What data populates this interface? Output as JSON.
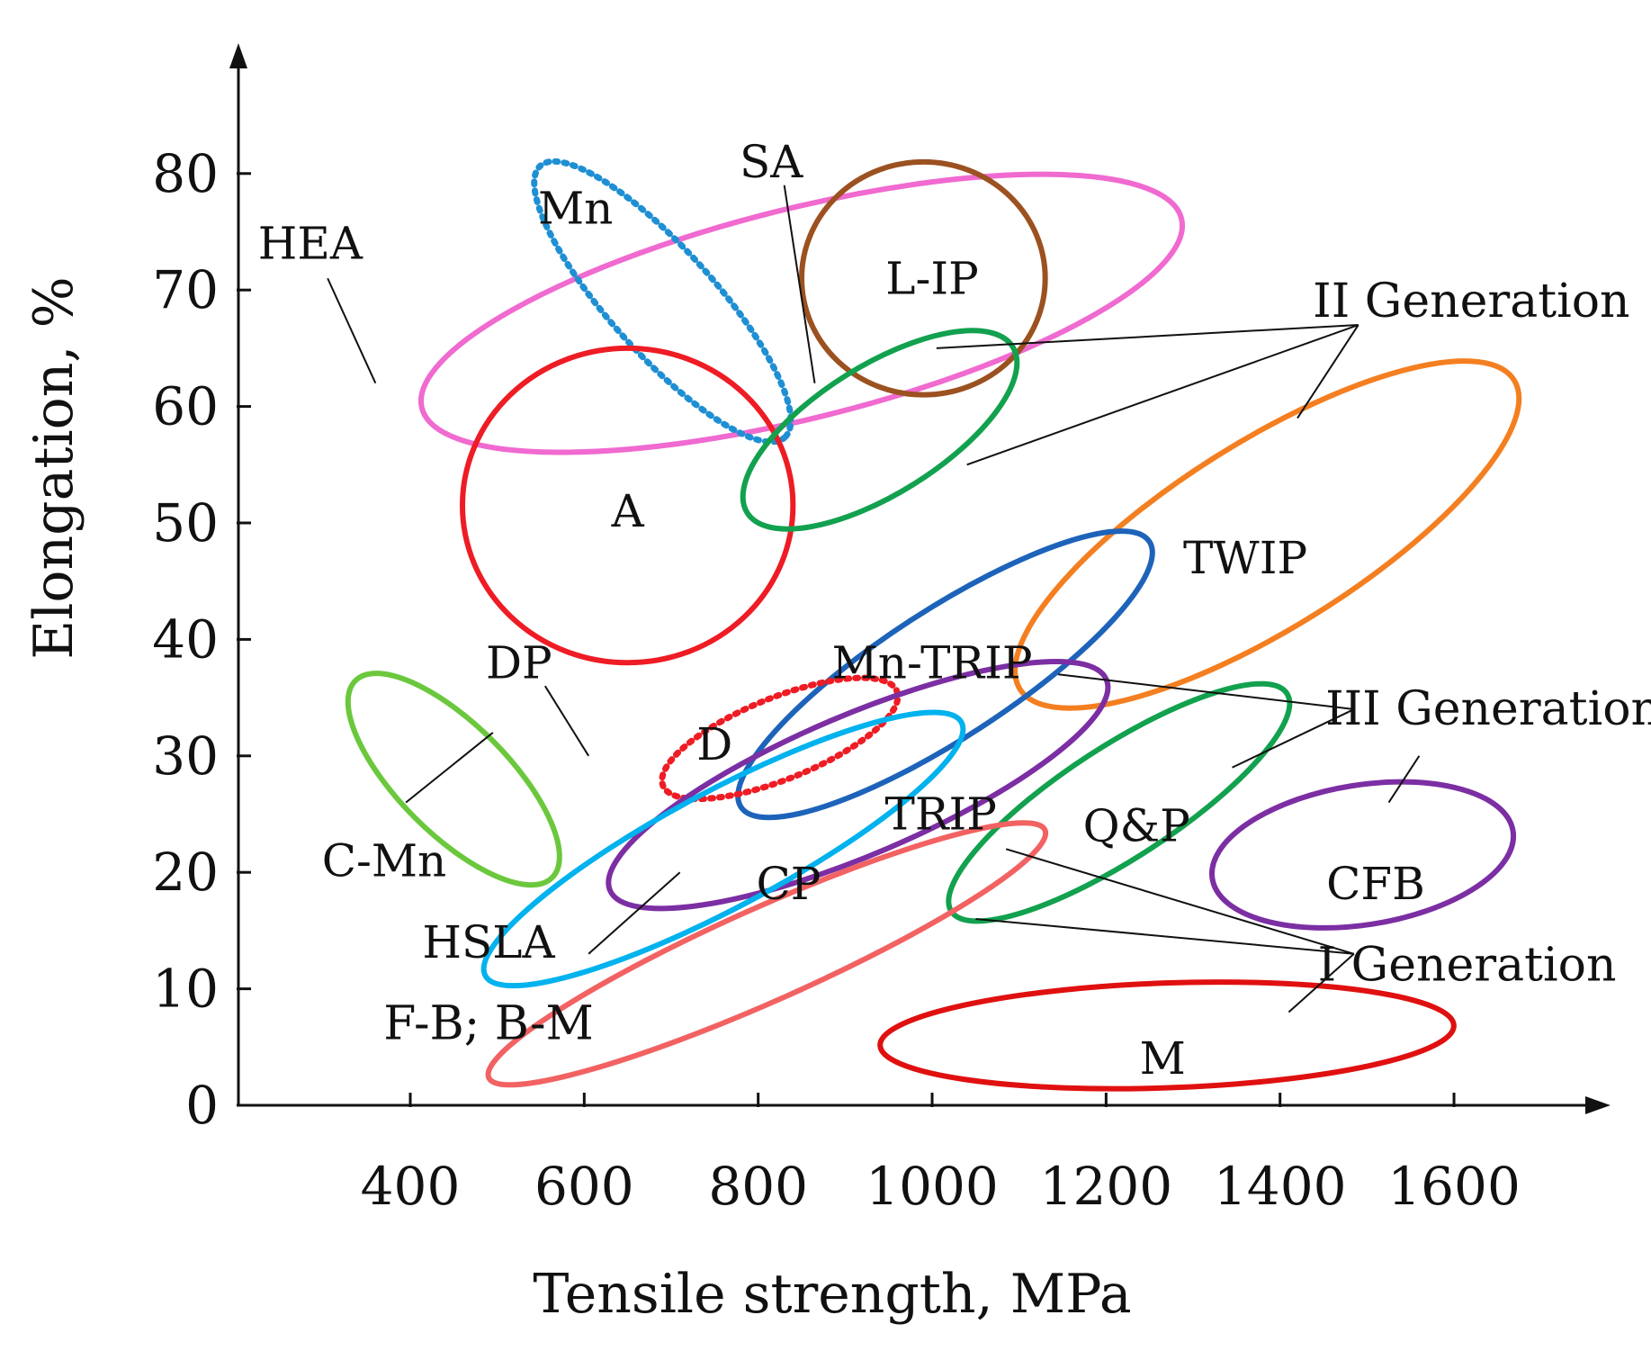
{
  "chart_data": {
    "type": "scatter",
    "title": "",
    "xlabel": "Tensile strength, MPa",
    "ylabel": "Elongation, %",
    "xlim": [
      200,
      1800
    ],
    "ylim": [
      0,
      85
    ],
    "x_ticks": [
      400,
      600,
      800,
      1000,
      1200,
      1400,
      1600
    ],
    "y_ticks": [
      0,
      10,
      20,
      30,
      40,
      50,
      60,
      70,
      80
    ],
    "regions": [
      {
        "name": "HEA",
        "cx": 850,
        "cy": 68,
        "rx": 450,
        "ry": 9,
        "angle": -14,
        "color": "#f06ad0",
        "dashed": false,
        "label_x": 285,
        "label_y": 74
      },
      {
        "name": "Mn",
        "cx": 690,
        "cy": 69,
        "rx": 210,
        "ry": 4.5,
        "angle": 48,
        "color": "#1f8fd3",
        "dashed": true,
        "label_x": 590,
        "label_y": 77
      },
      {
        "name": "A",
        "cx": 650,
        "cy": 51.5,
        "rx": 190,
        "ry": 13.5,
        "angle": 0,
        "color": "#ee1c24",
        "dashed": false,
        "label_x": 650,
        "label_y": 51
      },
      {
        "name": "L-IP",
        "cx": 990,
        "cy": 71,
        "rx": 140,
        "ry": 10,
        "angle": 0,
        "color": "#9b5120",
        "dashed": false,
        "label_x": 1000,
        "label_y": 71
      },
      {
        "name": "SA",
        "cx": 940,
        "cy": 58,
        "rx": 180,
        "ry": 5.5,
        "angle": -32,
        "color": "#12a14e",
        "dashed": false,
        "label_x": 815,
        "label_y": 81
      },
      {
        "name": "TWIP",
        "cx": 1385,
        "cy": 49,
        "rx": 335,
        "ry": 8,
        "angle": -32,
        "color": "#f47f21",
        "dashed": false,
        "label_x": 1360,
        "label_y": 47
      },
      {
        "name": "Mn-TRIP",
        "cx": 1015,
        "cy": 37,
        "rx": 280,
        "ry": 5.5,
        "angle": -33,
        "color": "#1d63ba",
        "dashed": false,
        "label_x": 1000,
        "label_y": 38
      },
      {
        "name": "D",
        "cx": 825,
        "cy": 31.5,
        "rx": 145,
        "ry": 3.5,
        "angle": -22,
        "color": "#ee1c24",
        "dashed": true,
        "label_x": 750,
        "label_y": 31
      },
      {
        "name": "TRIP",
        "cx": 915,
        "cy": 27.5,
        "rx": 310,
        "ry": 6,
        "angle": -23,
        "color": "#7c2ea3",
        "dashed": false,
        "label_x": 1010,
        "label_y": 25
      },
      {
        "name": "C-Mn",
        "cx": 450,
        "cy": 28,
        "rx": 160,
        "ry": 4.7,
        "angle": 45,
        "color": "#6bc83d",
        "dashed": false,
        "label_x": 370,
        "label_y": 21
      },
      {
        "name": "DP",
        "cx": 565,
        "cy": 38,
        "rx": 0,
        "ry": 0,
        "angle": 0,
        "color": "#111111",
        "dashed": false,
        "label_x": 525,
        "label_y": 38
      },
      {
        "name": "CP",
        "cx": 760,
        "cy": 22,
        "rx": 310,
        "ry": 5,
        "angle": -28,
        "color": "#00b2ee",
        "dashed": false,
        "label_x": 835,
        "label_y": 19
      },
      {
        "name": "Q&P",
        "cx": 1215,
        "cy": 26,
        "rx": 230,
        "ry": 4.8,
        "angle": -33,
        "color": "#12a14e",
        "dashed": false,
        "label_x": 1235,
        "label_y": 24
      },
      {
        "name": "CFB",
        "cx": 1495,
        "cy": 21.5,
        "rx": 175,
        "ry": 6,
        "angle": -9,
        "color": "#7c2ea3",
        "dashed": false,
        "label_x": 1510,
        "label_y": 19
      },
      {
        "name": "HSLA",
        "cx": 810,
        "cy": 13,
        "rx": 350,
        "ry": 4,
        "angle": -24,
        "color": "#f26262",
        "dashed": false,
        "label_x": 490,
        "label_y": 14
      },
      {
        "name": "M",
        "cx": 1270,
        "cy": 6,
        "rx": 330,
        "ry": 4.5,
        "angle": -2,
        "color": "#e01010",
        "dashed": false,
        "label_x": 1265,
        "label_y": 4
      }
    ],
    "annotations": [
      {
        "text": "II Generation",
        "x": 1620,
        "y": 69
      },
      {
        "text": "III Generation",
        "x": 1645,
        "y": 34
      },
      {
        "text": "I Generation",
        "x": 1615,
        "y": 12
      },
      {
        "text": "F-B; B-M",
        "x": 490,
        "y": 7
      }
    ]
  }
}
